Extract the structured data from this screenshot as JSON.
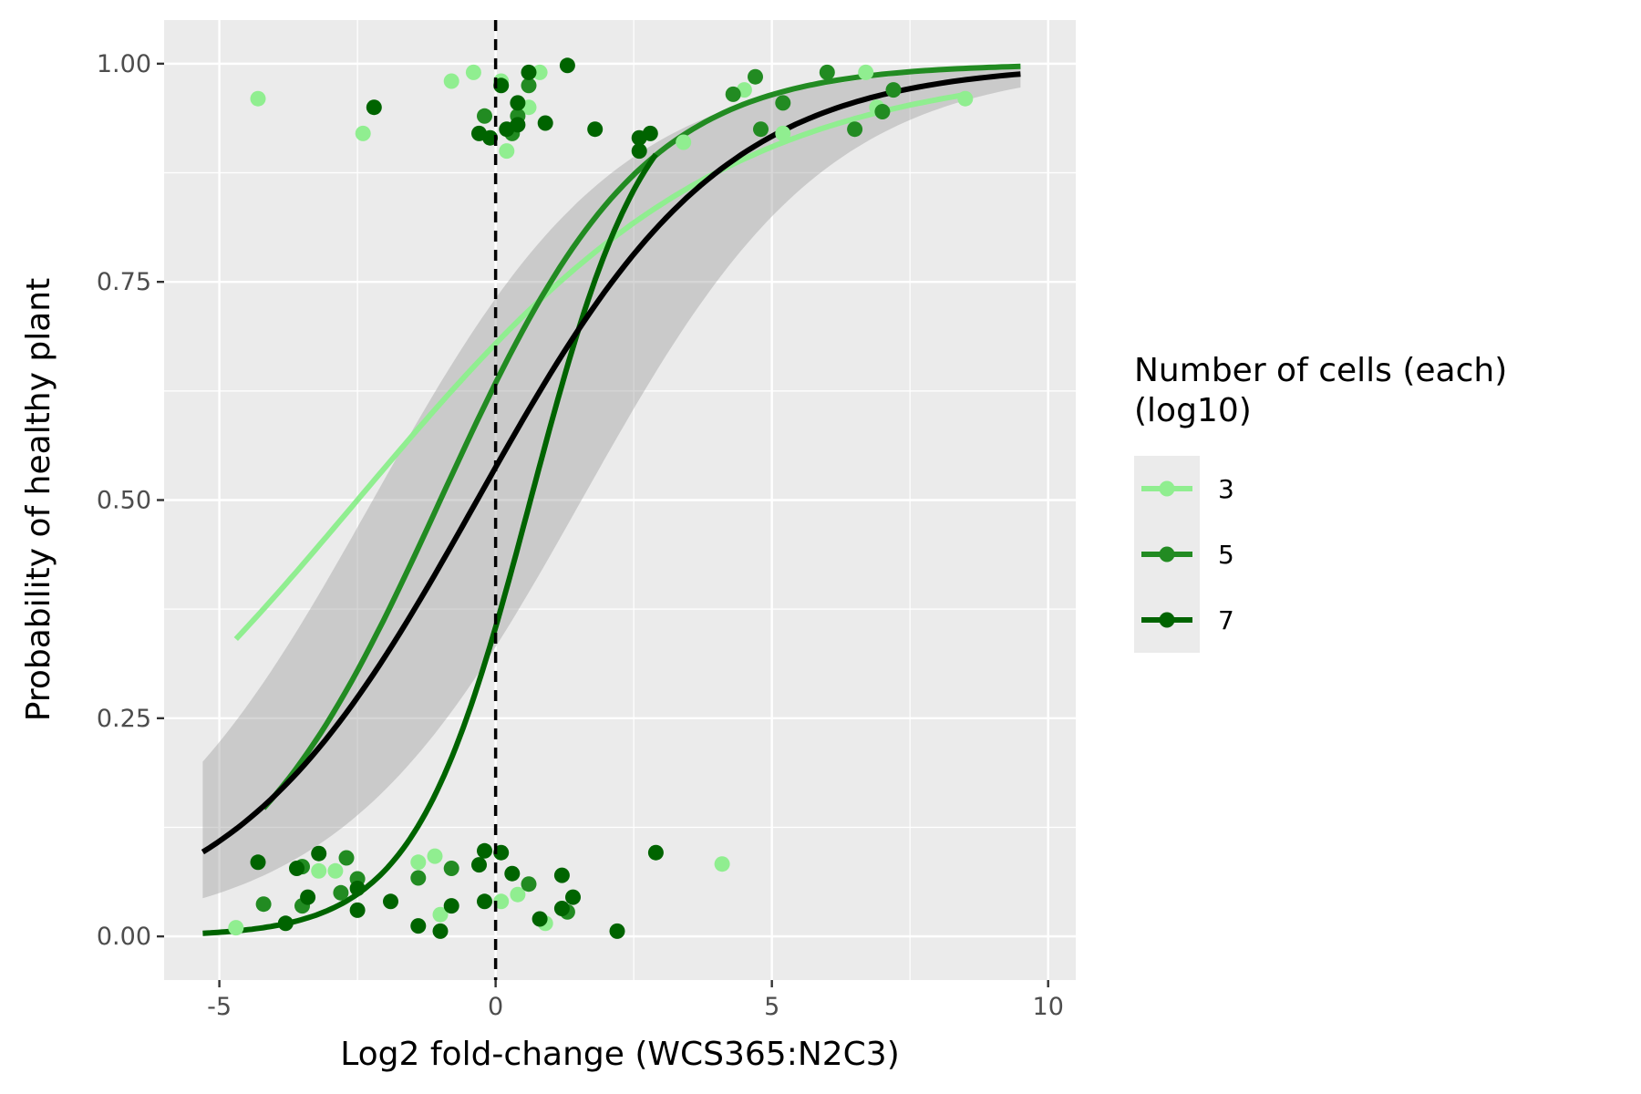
{
  "chart_data": {
    "type": "scatter",
    "xlabel": "Log2 fold-change (WCS365:N2C3)",
    "ylabel": "Probability of healthy plant",
    "xlim": [
      -6.0,
      10.5
    ],
    "ylim": [
      -0.05,
      1.05
    ],
    "x_ticks": [
      -5,
      0,
      5,
      10
    ],
    "x_tick_labels": [
      "-5",
      "0",
      "5",
      "10"
    ],
    "y_ticks": [
      0,
      0.25,
      0.5,
      0.75,
      1.0
    ],
    "y_tick_labels": [
      "0.00",
      "0.25",
      "0.50",
      "0.75",
      "1.00"
    ],
    "grid": true,
    "background": "#ebebeb",
    "reference_line": {
      "x": 0,
      "style": "dashed",
      "color": "#000000"
    },
    "legend": {
      "title": "Number of cells (each)\n(log10)",
      "position": "right",
      "entries": [
        {
          "label": "3",
          "color": "#90ee90"
        },
        {
          "label": "5",
          "color": "#228b22"
        },
        {
          "label": "7",
          "color": "#006400"
        }
      ]
    },
    "overall_fit": {
      "color": "#000000",
      "x_range": [
        -5.3,
        9.5
      ],
      "intercept": 0.15,
      "slope": 0.45,
      "ci_halfwidth_logit": 0.85
    },
    "series": [
      {
        "name": "3",
        "color": "#90ee90",
        "fit": {
          "x_range": [
            -4.7,
            8.5
          ],
          "intercept": 0.75,
          "slope": 0.3
        },
        "points": [
          [
            -4.3,
            0.96
          ],
          [
            -2.4,
            0.92
          ],
          [
            -0.8,
            0.98
          ],
          [
            -0.4,
            0.99
          ],
          [
            0.1,
            0.98
          ],
          [
            0.2,
            0.9
          ],
          [
            0.6,
            0.95
          ],
          [
            0.8,
            0.99
          ],
          [
            4.5,
            0.97
          ],
          [
            6.7,
            0.99
          ],
          [
            8.5,
            0.96
          ],
          [
            3.4,
            0.91
          ],
          [
            5.2,
            0.92
          ],
          [
            6.9,
            0.95
          ],
          [
            -4.7,
            0.01
          ],
          [
            -3.2,
            0.075
          ],
          [
            -2.9,
            0.075
          ],
          [
            -1.4,
            0.085
          ],
          [
            -1.1,
            0.092
          ],
          [
            -1.0,
            0.025
          ],
          [
            0.1,
            0.04
          ],
          [
            0.4,
            0.048
          ],
          [
            0.9,
            0.015
          ],
          [
            4.1,
            0.083
          ]
        ]
      },
      {
        "name": "5",
        "color": "#228b22",
        "fit": {
          "x_range": [
            -4.2,
            9.5
          ],
          "intercept": 0.55,
          "slope": 0.55
        },
        "points": [
          [
            -0.2,
            0.94
          ],
          [
            0.3,
            0.92
          ],
          [
            0.4,
            0.94
          ],
          [
            0.6,
            0.975
          ],
          [
            4.3,
            0.965
          ],
          [
            4.7,
            0.985
          ],
          [
            5.2,
            0.955
          ],
          [
            6.0,
            0.99
          ],
          [
            7.2,
            0.97
          ],
          [
            4.8,
            0.925
          ],
          [
            6.5,
            0.925
          ],
          [
            7.0,
            0.945
          ],
          [
            -4.2,
            0.037
          ],
          [
            -3.5,
            0.08
          ],
          [
            -2.7,
            0.09
          ],
          [
            -2.5,
            0.066
          ],
          [
            -1.4,
            0.067
          ],
          [
            -0.8,
            0.078
          ],
          [
            0.6,
            0.06
          ],
          [
            1.3,
            0.028
          ],
          [
            -3.5,
            0.035
          ],
          [
            -2.8,
            0.05
          ]
        ]
      },
      {
        "name": "7",
        "color": "#006400",
        "fit": {
          "x_range": [
            -5.3,
            2.9
          ],
          "intercept": -0.6,
          "slope": 0.95
        },
        "points": [
          [
            -2.2,
            0.95
          ],
          [
            0.1,
            0.975
          ],
          [
            0.4,
            0.955
          ],
          [
            0.6,
            0.99
          ],
          [
            0.9,
            0.932
          ],
          [
            1.3,
            0.998
          ],
          [
            1.8,
            0.925
          ],
          [
            2.6,
            0.915
          ],
          [
            2.8,
            0.92
          ],
          [
            2.6,
            0.9
          ],
          [
            -0.3,
            0.92
          ],
          [
            0.2,
            0.925
          ],
          [
            0.4,
            0.93
          ],
          [
            -0.1,
            0.915
          ],
          [
            -3.6,
            0.078
          ],
          [
            -3.2,
            0.095
          ],
          [
            -3.4,
            0.045
          ],
          [
            -3.8,
            0.015
          ],
          [
            -2.5,
            0.055
          ],
          [
            -2.5,
            0.03
          ],
          [
            -1.9,
            0.04
          ],
          [
            -1.4,
            0.012
          ],
          [
            -1.0,
            0.006
          ],
          [
            -0.8,
            0.035
          ],
          [
            -0.2,
            0.098
          ],
          [
            -0.3,
            0.082
          ],
          [
            -0.2,
            0.04
          ],
          [
            0.1,
            0.096
          ],
          [
            0.3,
            0.072
          ],
          [
            0.8,
            0.02
          ],
          [
            1.2,
            0.032
          ],
          [
            1.2,
            0.07
          ],
          [
            1.4,
            0.045
          ],
          [
            2.2,
            0.006
          ],
          [
            2.9,
            0.096
          ],
          [
            -4.3,
            0.085
          ]
        ]
      }
    ]
  }
}
